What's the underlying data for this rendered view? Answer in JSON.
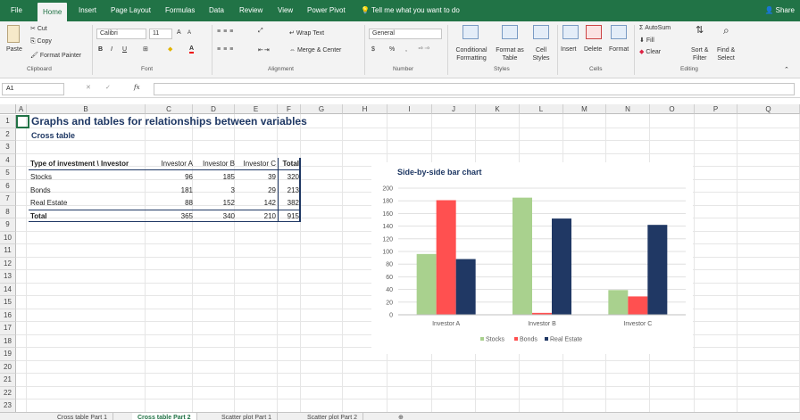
{
  "ribbon_tabs": [
    "File",
    "Home",
    "Insert",
    "Page Layout",
    "Formulas",
    "Data",
    "Review",
    "View",
    "Power Pivot",
    "Tell me what you want to do"
  ],
  "share_label": "Share",
  "clipboard": {
    "paste": "Paste",
    "cut": "Cut",
    "copy": "Copy",
    "format_painter": "Format Painter",
    "label": "Clipboard"
  },
  "font": {
    "name": "Calibri",
    "size": "11",
    "grow": "A",
    "shrink": "A",
    "bold": "B",
    "italic": "I",
    "underline": "U",
    "font_color": "A",
    "label": "Font"
  },
  "alignment": {
    "wrap_text": "Wrap Text",
    "merge_center": "Merge & Center",
    "label": "Alignment"
  },
  "number": {
    "format": "General",
    "currency": "$",
    "percent": "%",
    "comma": ",",
    "label": "Number"
  },
  "styles": {
    "conditional": "Conditional",
    "formatting": "Formatting",
    "format_as": "Format as",
    "table": "Table",
    "cell": "Cell",
    "styles": "Styles",
    "label": "Styles"
  },
  "cells": {
    "insert": "Insert",
    "delete": "Delete",
    "format": "Format",
    "label": "Cells"
  },
  "editing": {
    "autosum": "AutoSum",
    "fill": "Fill",
    "clear": "Clear",
    "sort_filter": "Sort &",
    "filter": "Filter",
    "find_select": "Find &",
    "select": "Select",
    "label": "Editing"
  },
  "formula_bar": {
    "name_box": "A1",
    "fx": "fx",
    "value": ""
  },
  "columns": [
    "A",
    "B",
    "C",
    "D",
    "E",
    "F",
    "G",
    "H",
    "I",
    "J",
    "K",
    "L",
    "M",
    "N",
    "O",
    "P",
    "Q"
  ],
  "rows": [
    "1",
    "2",
    "3",
    "4",
    "5",
    "6",
    "7",
    "8",
    "9",
    "10",
    "11",
    "12",
    "13",
    "14",
    "15",
    "16",
    "17",
    "18",
    "19",
    "20",
    "21",
    "22",
    "23"
  ],
  "sheet": {
    "title": "Graphs and tables for relationships between variables",
    "subtitle": "Cross table",
    "table_headers": [
      "Type of investment \\ Investor",
      "Investor A",
      "Investor B",
      "Investor C",
      "Total"
    ],
    "table_rows": [
      [
        "Stocks",
        "96",
        "185",
        "39",
        "320"
      ],
      [
        "Bonds",
        "181",
        "3",
        "29",
        "213"
      ],
      [
        "Real Estate",
        "88",
        "152",
        "142",
        "382"
      ]
    ],
    "total_row": [
      "Total",
      "365",
      "340",
      "210",
      "915"
    ]
  },
  "chart_data": {
    "type": "bar",
    "title": "Side-by-side bar chart",
    "categories": [
      "Investor A",
      "Investor B",
      "Investor C"
    ],
    "series": [
      {
        "name": "Stocks",
        "values": [
          96,
          185,
          39
        ],
        "color": "#a9d18e"
      },
      {
        "name": "Bonds",
        "values": [
          181,
          3,
          29
        ],
        "color": "#ff5050"
      },
      {
        "name": "Real Estate",
        "values": [
          88,
          152,
          142
        ],
        "color": "#203864"
      }
    ],
    "ylim": [
      0,
      200
    ],
    "yticks": [
      "0",
      "20",
      "40",
      "60",
      "80",
      "100",
      "120",
      "140",
      "160",
      "180",
      "200"
    ],
    "legend": "bottom",
    "grid": true
  },
  "sheet_tabs": [
    "Cross table Part 1",
    "Cross table Part 2",
    "Scatter plot Part 1",
    "Scatter plot Part 2"
  ],
  "colors": {
    "accent": "#217346",
    "title": "#1f3864"
  }
}
